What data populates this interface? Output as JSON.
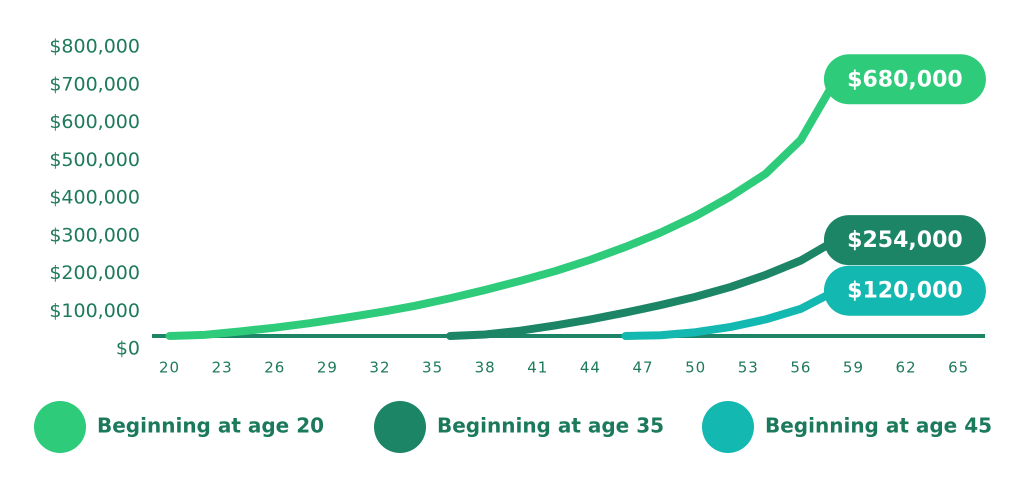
{
  "chart_data": {
    "type": "line",
    "x": [
      20,
      22,
      24,
      26,
      28,
      30,
      32,
      34,
      36,
      38,
      40,
      42,
      44,
      46,
      48,
      50,
      52,
      54,
      56,
      58
    ],
    "series": [
      {
        "name": "Beginning at age 20",
        "color": "#2ecc7a",
        "values": [
          0,
          3000,
          12000,
          22000,
          34000,
          48000,
          63000,
          80000,
          100000,
          122000,
          146000,
          172000,
          202000,
          236000,
          274000,
          318000,
          370000,
          430000,
          520000,
          680000
        ],
        "value_labels": [
          null,
          null,
          null,
          null,
          null,
          null,
          null,
          null,
          null,
          null,
          null,
          null,
          null,
          null,
          null,
          null,
          null,
          null,
          null,
          "$680,000"
        ]
      },
      {
        "name": "Beginning at age 35",
        "color": "#1c8566",
        "values": [
          null,
          null,
          null,
          null,
          null,
          null,
          null,
          null,
          0,
          4000,
          14000,
          28000,
          44000,
          62000,
          82000,
          104000,
          130000,
          162000,
          200000,
          254000
        ],
        "value_labels": [
          null,
          null,
          null,
          null,
          null,
          null,
          null,
          null,
          null,
          null,
          null,
          null,
          null,
          null,
          null,
          null,
          null,
          null,
          null,
          "$254,000"
        ]
      },
      {
        "name": "Beginning at age 45",
        "color": "#13b9b1",
        "values": [
          null,
          null,
          null,
          null,
          null,
          null,
          null,
          null,
          null,
          null,
          null,
          null,
          null,
          0,
          2000,
          10000,
          24000,
          44000,
          72000,
          120000
        ],
        "value_labels": [
          null,
          null,
          null,
          null,
          null,
          null,
          null,
          null,
          null,
          null,
          null,
          null,
          null,
          null,
          null,
          null,
          null,
          null,
          null,
          "$120,000"
        ]
      }
    ],
    "xlim": [
      19,
      66.5
    ],
    "xticks": [
      20,
      23,
      26,
      29,
      32,
      35,
      38,
      41,
      44,
      47,
      50,
      53,
      56,
      59,
      62,
      65
    ],
    "ylim": [
      0,
      800000
    ],
    "yticks": [
      {
        "value": 0,
        "label": "$0"
      },
      {
        "value": 100000,
        "label": "$100,000"
      },
      {
        "value": 200000,
        "label": "$200,000"
      },
      {
        "value": 300000,
        "label": "$300,000"
      },
      {
        "value": 400000,
        "label": "$400,000"
      },
      {
        "value": 500000,
        "label": "$500,000"
      },
      {
        "value": 600000,
        "label": "$600,000"
      },
      {
        "value": 700000,
        "label": "$700,000"
      },
      {
        "value": 800000,
        "label": "$800,000"
      }
    ],
    "grid": false
  }
}
